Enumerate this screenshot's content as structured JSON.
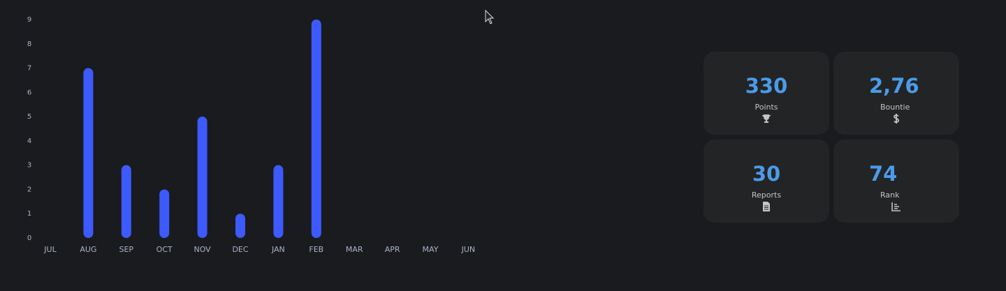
{
  "chart_data": {
    "type": "bar",
    "categories": [
      "JUL",
      "AUG",
      "SEP",
      "OCT",
      "NOV",
      "DEC",
      "JAN",
      "FEB",
      "MAR",
      "APR",
      "MAY",
      "JUN"
    ],
    "values": [
      0,
      7,
      3,
      2,
      5,
      1,
      3,
      9,
      0,
      0,
      0,
      0
    ],
    "color": "#3d5afe",
    "ylim": [
      0,
      9
    ],
    "yticks": [
      0,
      1,
      2,
      3,
      4,
      5,
      6,
      7,
      8,
      9
    ],
    "grid": false
  },
  "stats": [
    {
      "value": "330",
      "label": "Points"
    },
    {
      "value": "2,76",
      "label": "Bountie"
    },
    {
      "value": "30",
      "label": "Reports"
    },
    {
      "value": "74",
      "label": "Rank"
    }
  ]
}
